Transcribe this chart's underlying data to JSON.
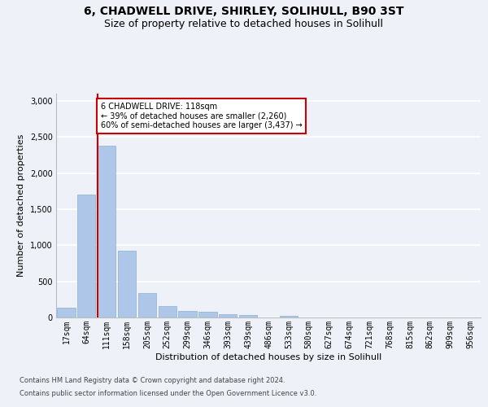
{
  "title1": "6, CHADWELL DRIVE, SHIRLEY, SOLIHULL, B90 3ST",
  "title2": "Size of property relative to detached houses in Solihull",
  "xlabel": "Distribution of detached houses by size in Solihull",
  "ylabel": "Number of detached properties",
  "bin_labels": [
    "17sqm",
    "64sqm",
    "111sqm",
    "158sqm",
    "205sqm",
    "252sqm",
    "299sqm",
    "346sqm",
    "393sqm",
    "439sqm",
    "486sqm",
    "533sqm",
    "580sqm",
    "627sqm",
    "674sqm",
    "721sqm",
    "768sqm",
    "815sqm",
    "862sqm",
    "909sqm",
    "956sqm"
  ],
  "bar_values": [
    140,
    1700,
    2380,
    920,
    340,
    160,
    95,
    75,
    50,
    30,
    0,
    25,
    0,
    0,
    0,
    0,
    0,
    0,
    0,
    0,
    0
  ],
  "bar_color": "#aec6e8",
  "bar_edge_color": "#8ab0d0",
  "vline_index": 2,
  "vline_color": "#cc0000",
  "annotation_text": "6 CHADWELL DRIVE: 118sqm\n← 39% of detached houses are smaller (2,260)\n60% of semi-detached houses are larger (3,437) →",
  "annotation_box_edgecolor": "#cc0000",
  "annotation_box_facecolor": "#ffffff",
  "ylim": [
    0,
    3100
  ],
  "yticks": [
    0,
    500,
    1000,
    1500,
    2000,
    2500,
    3000
  ],
  "footer1": "Contains HM Land Registry data © Crown copyright and database right 2024.",
  "footer2": "Contains public sector information licensed under the Open Government Licence v3.0.",
  "bg_color": "#eef2f8",
  "plot_bg_color": "#eef2f8",
  "grid_color": "#ffffff",
  "title1_fontsize": 10,
  "title2_fontsize": 9,
  "xlabel_fontsize": 8,
  "ylabel_fontsize": 8,
  "tick_fontsize": 7,
  "annotation_fontsize": 7,
  "footer_fontsize": 6
}
